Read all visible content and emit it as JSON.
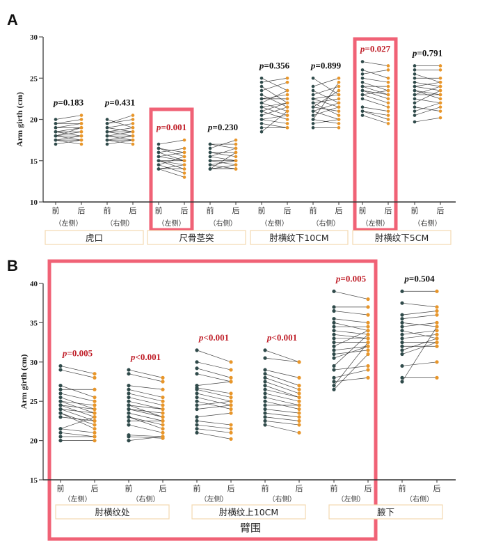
{
  "colors": {
    "pre_dot": "#2f4a4a",
    "post_dot": "#e8962a",
    "line": "#222222",
    "highlight": "#f06276",
    "sig_text": "#c0202a",
    "ns_text": "#111111",
    "group_box_border": "#f3d9b0"
  },
  "chart_data": [
    {
      "panel": "A",
      "type": "line",
      "subtype": "paired-dot-plot",
      "ylabel": "Arm girth (cm)",
      "ylim": [
        10,
        30
      ],
      "yticks": [
        10,
        15,
        20,
        25,
        30
      ],
      "x_tick_labels": [
        "前",
        "后"
      ],
      "groups": [
        {
          "name": "虎口",
          "pairs": [
            {
              "side": "（左侧）",
              "p": "p=0.183",
              "p_value": 0.183,
              "significant": false,
              "highlighted": false,
              "pre": [
                20,
                19.5,
                19.5,
                19,
                19,
                18.5,
                18.5,
                18.5,
                18,
                18,
                18,
                18,
                17.5,
                17.5,
                17.5,
                17
              ],
              "post": [
                20.5,
                20,
                19.5,
                19,
                19.5,
                18.5,
                18,
                19,
                18,
                18.5,
                17.5,
                19,
                18,
                17.5,
                17,
                17.5
              ]
            },
            {
              "side": "（右侧）",
              "p": "p=0.431",
              "p_value": 0.431,
              "significant": false,
              "highlighted": false,
              "pre": [
                20,
                19.5,
                19.5,
                19,
                19,
                18.5,
                18.5,
                18.5,
                18,
                18,
                18,
                17.5,
                17.5,
                17.5,
                17
              ],
              "post": [
                19,
                20.5,
                20,
                19.5,
                18.5,
                18,
                19,
                18.5,
                18,
                17.5,
                18.5,
                18,
                17,
                17.5,
                17.5
              ]
            }
          ]
        },
        {
          "name": "尺骨茎突",
          "pairs": [
            {
              "side": "（左侧）",
              "p": "p=0.001",
              "p_value": 0.001,
              "significant": true,
              "highlighted": true,
              "pre": [
                17,
                16.5,
                16.5,
                16,
                16,
                15.5,
                15.5,
                15,
                15,
                15,
                14.5,
                14.5,
                14,
                14,
                14
              ],
              "post": [
                17.5,
                16,
                15.5,
                16.5,
                15,
                16,
                15,
                14.5,
                15,
                14,
                15.5,
                13.5,
                14.5,
                13,
                14
              ]
            },
            {
              "side": "（右侧）",
              "p": "p=0.230",
              "p_value": 0.23,
              "significant": false,
              "highlighted": false,
              "pre": [
                17,
                17,
                16.5,
                16,
                16,
                15.5,
                15.5,
                15,
                15,
                14.5,
                14.5,
                14,
                14,
                14,
                14
              ],
              "post": [
                17,
                16.5,
                17.5,
                15.5,
                16,
                15,
                16.5,
                15,
                14.5,
                14,
                15,
                14.5,
                14,
                14,
                16
              ]
            }
          ]
        },
        {
          "name": "肘横纹下10CM",
          "pairs": [
            {
              "side": "（左侧）",
              "p": "p=0.356",
              "p_value": 0.356,
              "significant": false,
              "highlighted": false,
              "pre": [
                25,
                24.5,
                24,
                23.5,
                23,
                22.5,
                22.5,
                22,
                22,
                21.5,
                21.5,
                21,
                21,
                20.5,
                20,
                20,
                19.5,
                19,
                18.5
              ],
              "post": [
                23.5,
                25,
                22,
                24.5,
                21.5,
                23,
                22.5,
                21,
                23.5,
                20.5,
                22,
                22,
                20,
                21.5,
                19.5,
                20.5,
                19,
                19,
                21
              ]
            },
            {
              "side": "（右侧）",
              "p": "p=0.899",
              "p_value": 0.899,
              "significant": false,
              "highlighted": false,
              "pre": [
                25,
                24,
                23.5,
                23,
                22.5,
                22.5,
                22,
                22,
                21.5,
                21.5,
                21,
                21,
                20.5,
                20,
                20,
                19.5,
                19
              ],
              "post": [
                23,
                25,
                22,
                24,
                23,
                21.5,
                22.5,
                20.5,
                23.5,
                21,
                22,
                20,
                21.5,
                19.5,
                24.5,
                20,
                19
              ]
            }
          ]
        },
        {
          "name": "肘横纹下5CM",
          "pairs": [
            {
              "side": "（左侧）",
              "p": "p=0.027",
              "p_value": 0.027,
              "significant": true,
              "highlighted": true,
              "pre": [
                27,
                26,
                25.5,
                25,
                24.5,
                24,
                24,
                23.5,
                23.5,
                23,
                23,
                22.5,
                21.5,
                21,
                21,
                20.5
              ],
              "post": [
                26.5,
                25,
                26,
                24.5,
                23.5,
                23,
                24,
                22.5,
                23,
                22,
                23.5,
                21.5,
                21,
                20,
                20.5,
                19.5
              ]
            },
            {
              "side": "（右侧）",
              "p": "p=0.791",
              "p_value": 0.791,
              "significant": false,
              "highlighted": false,
              "pre": [
                26.5,
                26,
                25.5,
                25,
                24.5,
                24,
                24,
                23.5,
                23.5,
                23,
                23,
                22.5,
                22,
                21.5,
                21,
                20.5,
                19.7
              ],
              "post": [
                26.5,
                26,
                24.5,
                25,
                24,
                23.5,
                24.5,
                23,
                22.5,
                24,
                23,
                22,
                23.5,
                21,
                22,
                21.5,
                20.2
              ]
            }
          ]
        }
      ]
    },
    {
      "panel": "B",
      "type": "line",
      "subtype": "paired-dot-plot",
      "ylabel": "Arm girth (cm)",
      "ylim": [
        15,
        40
      ],
      "yticks": [
        15,
        20,
        25,
        30,
        35,
        40
      ],
      "x_tick_labels": [
        "前",
        "后"
      ],
      "highlight_region_label": "臂围",
      "groups": [
        {
          "name": "肘横纹处",
          "pairs": [
            {
              "side": "（左侧）",
              "p": "p=0.005",
              "p_value": 0.005,
              "significant": true,
              "highlighted": true,
              "pre": [
                29.5,
                29,
                27,
                26.5,
                26,
                25.5,
                25,
                25,
                24.5,
                24.5,
                24,
                24,
                23.5,
                23.5,
                23,
                21.5,
                21.5,
                21,
                20.5,
                20
              ],
              "post": [
                28.5,
                28,
                25.5,
                26.5,
                25,
                24,
                24.5,
                23.5,
                24,
                23,
                23.5,
                22.5,
                22,
                21.5,
                22.5,
                23,
                21,
                20.5,
                20.5,
                20
              ]
            },
            {
              "side": "（右侧）",
              "p": "p<0.001",
              "p_value": 0.001,
              "significant": true,
              "highlighted": true,
              "pre": [
                29,
                28.5,
                27,
                26.5,
                26,
                25.5,
                25,
                24.5,
                24.5,
                24,
                24,
                23.5,
                23,
                23,
                22.5,
                22,
                20.7,
                20.5,
                20
              ],
              "post": [
                28,
                27.5,
                26.5,
                25.5,
                25,
                24.5,
                24,
                24,
                23,
                23.5,
                23,
                22.5,
                22,
                21.5,
                22.5,
                21,
                20.5,
                20.3,
                20.5
              ]
            }
          ]
        },
        {
          "name": "肘横纹上10CM",
          "pairs": [
            {
              "side": "（左侧）",
              "p": "p<0.001",
              "p_value": 0.001,
              "significant": true,
              "highlighted": true,
              "pre": [
                31.5,
                30,
                29.2,
                28.5,
                27,
                26.7,
                26.5,
                26,
                25.5,
                25,
                24.5,
                24,
                23,
                22.5,
                22,
                21.5,
                21
              ],
              "post": [
                30,
                29,
                28,
                27.5,
                27.5,
                26,
                25.5,
                25,
                24.5,
                24,
                25,
                24.5,
                23.5,
                22,
                21.5,
                21,
                20.2
              ]
            },
            {
              "side": "（右侧）",
              "p": "p<0.001",
              "p_value": 0.001,
              "significant": true,
              "highlighted": true,
              "pre": [
                31.5,
                30.5,
                29,
                28.5,
                28,
                27.5,
                27,
                26.5,
                26,
                25.5,
                25,
                24.5,
                24,
                23.5,
                23,
                22.5,
                22
              ],
              "post": [
                30,
                30,
                28,
                27,
                26.5,
                26,
                25.5,
                25.5,
                25,
                24.5,
                24,
                24.5,
                23.5,
                23,
                22.5,
                22,
                21
              ]
            }
          ]
        },
        {
          "name": "腋下",
          "pairs": [
            {
              "side": "（左侧）",
              "p": "p=0.005",
              "p_value": 0.005,
              "significant": true,
              "highlighted": true,
              "pre": [
                39,
                37,
                36.5,
                35.5,
                35,
                34.5,
                34,
                33.5,
                33,
                32.5,
                32,
                31.5,
                31,
                30.5,
                29.5,
                29,
                28,
                27.5,
                27,
                26.5
              ],
              "post": [
                38,
                37,
                36,
                35,
                34,
                34.5,
                33.5,
                33,
                33,
                32.5,
                34,
                32,
                31.5,
                32,
                33.5,
                29.5,
                29,
                28,
                32.5,
                31
              ]
            },
            {
              "side": "（右侧）",
              "p": "p=0.504",
              "p_value": 0.504,
              "significant": false,
              "highlighted": false,
              "pre": [
                39,
                37.5,
                36,
                35.5,
                35,
                34.5,
                34,
                33.5,
                33,
                32.5,
                32,
                31.5,
                31,
                29.5,
                28,
                27.5
              ],
              "post": [
                39,
                37,
                36.5,
                36,
                34.5,
                35,
                33,
                34,
                33.5,
                32.5,
                32,
                33,
                32.5,
                30,
                28,
                34.5
              ]
            }
          ]
        }
      ]
    }
  ]
}
